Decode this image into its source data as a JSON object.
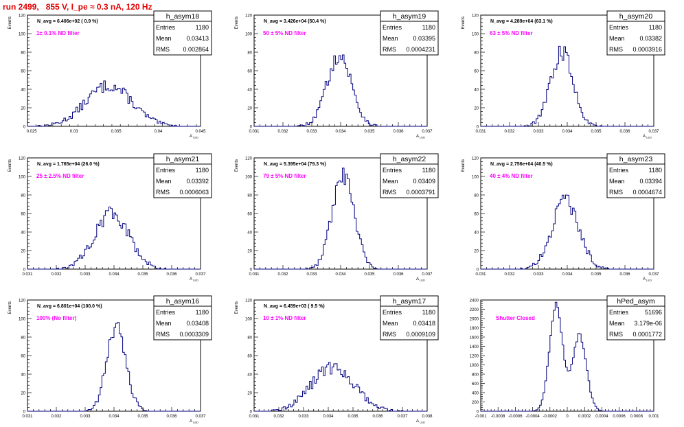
{
  "header": {
    "run_title": "run 2499,   855 V, I_pe ≈ 0.3 nA, 120 Hz"
  },
  "colors": {
    "histogram_line": "#00007f",
    "filter_label": "#ff00ff",
    "title": "#e00000"
  },
  "stat_labels": {
    "entries": "Entries",
    "mean": "Mean",
    "rms": "RMS"
  },
  "chart_data": [
    {
      "type": "histogram",
      "name": "h_asym18",
      "xlim": [
        0.0245,
        0.045
      ],
      "ylim": [
        0,
        120
      ],
      "xticks": [
        0.025,
        0.03,
        0.035,
        0.04,
        0.045
      ],
      "xtick_labels": [
        "0.025",
        "0.03",
        "0.035",
        "0.04",
        "0.045"
      ],
      "yticks": [
        0,
        20,
        40,
        60,
        80,
        100,
        120
      ],
      "ytick_labels": [
        "0",
        "20",
        "40",
        "60",
        "80",
        "100",
        "120"
      ],
      "ylabel": "Events",
      "xlabel": "A",
      "xlabel_sub": "LED",
      "stats": {
        "entries": "1180",
        "mean": "0.03413",
        "rms": "0.002864"
      },
      "n_avg": "N_avg = 6.406e+02 ( 0.9 %)",
      "filter_label": "1± 0.1% ND filter",
      "mode": "wide",
      "center": 0.03413,
      "sigma": 0.002864,
      "peak": 44
    },
    {
      "type": "histogram",
      "name": "h_asym19",
      "xlim": [
        0.031,
        0.037
      ],
      "ylim": [
        0,
        120
      ],
      "xticks": [
        0.031,
        0.032,
        0.033,
        0.034,
        0.035,
        0.036,
        0.037
      ],
      "xtick_labels": [
        "0.031",
        "0.032",
        "0.033",
        "0.034",
        "0.035",
        "0.036",
        "0.037"
      ],
      "yticks": [
        0,
        20,
        40,
        60,
        80,
        100,
        120
      ],
      "ytick_labels": [
        "0",
        "20",
        "40",
        "60",
        "80",
        "100",
        "120"
      ],
      "ylabel": "Events",
      "xlabel": "A",
      "xlabel_sub": "LED",
      "stats": {
        "entries": "1180",
        "mean": "0.03395",
        "rms": "0.0004231"
      },
      "n_avg": "N_avg = 3.426e+04 (50.4 %)",
      "filter_label": "50 ± 5% ND filter",
      "mode": "gauss",
      "center": 0.03395,
      "sigma": 0.0004231,
      "peak": 77
    },
    {
      "type": "histogram",
      "name": "h_asym20",
      "xlim": [
        0.031,
        0.037
      ],
      "ylim": [
        0,
        120
      ],
      "xticks": [
        0.031,
        0.032,
        0.033,
        0.034,
        0.035,
        0.036,
        0.037
      ],
      "xtick_labels": [
        "0.031",
        "0.032",
        "0.033",
        "0.034",
        "0.035",
        "0.036",
        "0.037"
      ],
      "yticks": [
        0,
        20,
        40,
        60,
        80,
        100,
        120
      ],
      "ytick_labels": [
        "0",
        "20",
        "40",
        "60",
        "80",
        "100",
        "120"
      ],
      "ylabel": "Events",
      "xlabel": "A",
      "xlabel_sub": "LED",
      "stats": {
        "entries": "1180",
        "mean": "0.03382",
        "rms": "0.0003916"
      },
      "n_avg": "N_avg = 4.289e+04 (63.1 %)",
      "filter_label": "63 ± 5% ND filter",
      "mode": "gauss",
      "center": 0.03382,
      "sigma": 0.0003916,
      "peak": 80
    },
    {
      "type": "histogram",
      "name": "h_asym21",
      "xlim": [
        0.031,
        0.037
      ],
      "ylim": [
        0,
        120
      ],
      "xticks": [
        0.031,
        0.032,
        0.033,
        0.034,
        0.035,
        0.036,
        0.037
      ],
      "xtick_labels": [
        "0.031",
        "0.032",
        "0.033",
        "0.034",
        "0.035",
        "0.036",
        "0.037"
      ],
      "yticks": [
        0,
        20,
        40,
        60,
        80,
        100,
        120
      ],
      "ytick_labels": [
        "0",
        "20",
        "40",
        "60",
        "80",
        "100",
        "120"
      ],
      "ylabel": "Events",
      "xlabel": "A",
      "xlabel_sub": "LED",
      "stats": {
        "entries": "1180",
        "mean": "0.03392",
        "rms": "0.0006063"
      },
      "n_avg": "N_avg = 1.765e+04 (26.0 %)",
      "filter_label": "25 ± 2.5% ND filter",
      "mode": "gauss",
      "center": 0.03392,
      "sigma": 0.0006063,
      "peak": 60
    },
    {
      "type": "histogram",
      "name": "h_asym22",
      "xlim": [
        0.031,
        0.037
      ],
      "ylim": [
        0,
        120
      ],
      "xticks": [
        0.031,
        0.032,
        0.033,
        0.034,
        0.035,
        0.036,
        0.037
      ],
      "xtick_labels": [
        "0.031",
        "0.032",
        "0.033",
        "0.034",
        "0.035",
        "0.036",
        "0.037"
      ],
      "yticks": [
        0,
        20,
        40,
        60,
        80,
        100,
        120
      ],
      "ytick_labels": [
        "0",
        "20",
        "40",
        "60",
        "80",
        "100",
        "120"
      ],
      "ylabel": "Events",
      "xlabel": "A",
      "xlabel_sub": "LED",
      "stats": {
        "entries": "1180",
        "mean": "0.03409",
        "rms": "0.0003791"
      },
      "n_avg": "N_avg = 5.395e+04 (79.3 %)",
      "filter_label": "79 ± 5% ND filter",
      "mode": "gauss",
      "center": 0.03409,
      "sigma": 0.0003791,
      "peak": 100
    },
    {
      "type": "histogram",
      "name": "h_asym23",
      "xlim": [
        0.031,
        0.037
      ],
      "ylim": [
        0,
        120
      ],
      "xticks": [
        0.031,
        0.032,
        0.033,
        0.034,
        0.035,
        0.036,
        0.037
      ],
      "xtick_labels": [
        "0.031",
        "0.032",
        "0.033",
        "0.034",
        "0.035",
        "0.036",
        "0.037"
      ],
      "yticks": [
        0,
        20,
        40,
        60,
        80,
        100,
        120
      ],
      "ytick_labels": [
        "0",
        "20",
        "40",
        "60",
        "80",
        "100",
        "120"
      ],
      "ylabel": "Events",
      "xlabel": "A",
      "xlabel_sub": "LED",
      "stats": {
        "entries": "1180",
        "mean": "0.03394",
        "rms": "0.0004674"
      },
      "n_avg": "N_avg = 2.756e+04 (40.5 %)",
      "filter_label": "40 ± 4% ND filter",
      "mode": "gauss",
      "center": 0.03394,
      "sigma": 0.0004674,
      "peak": 74
    },
    {
      "type": "histogram",
      "name": "h_asym16",
      "xlim": [
        0.031,
        0.037
      ],
      "ylim": [
        0,
        120
      ],
      "xticks": [
        0.031,
        0.032,
        0.033,
        0.034,
        0.035,
        0.036,
        0.037
      ],
      "xtick_labels": [
        "0.031",
        "0.032",
        "0.033",
        "0.034",
        "0.035",
        "0.036",
        "0.037"
      ],
      "yticks": [
        0,
        20,
        40,
        60,
        80,
        100,
        120
      ],
      "ytick_labels": [
        "0",
        "20",
        "40",
        "60",
        "80",
        "100",
        "120"
      ],
      "ylabel": "Events",
      "xlabel": "A",
      "xlabel_sub": "LED",
      "stats": {
        "entries": "1180",
        "mean": "0.03408",
        "rms": "0.0003309"
      },
      "n_avg": "N_avg = 6.801e+04 (100.0 %)",
      "filter_label": "100% (No filter)",
      "mode": "gauss",
      "center": 0.03408,
      "sigma": 0.0003309,
      "peak": 90
    },
    {
      "type": "histogram",
      "name": "h_asym17",
      "xlim": [
        0.031,
        0.038
      ],
      "ylim": [
        0,
        120
      ],
      "xticks": [
        0.031,
        0.032,
        0.033,
        0.034,
        0.035,
        0.036,
        0.037,
        0.038
      ],
      "xtick_labels": [
        "0.031",
        "0.032",
        "0.033",
        "0.034",
        "0.035",
        "0.036",
        "0.037",
        "0.038"
      ],
      "yticks": [
        0,
        20,
        40,
        60,
        80,
        100,
        120
      ],
      "ytick_labels": [
        "0",
        "20",
        "40",
        "60",
        "80",
        "100",
        "120"
      ],
      "ylabel": "Events",
      "xlabel": "A",
      "xlabel_sub": "LED",
      "stats": {
        "entries": "1180",
        "mean": "0.03418",
        "rms": "0.0009109"
      },
      "n_avg": "N_avg = 6.459e+03 ( 9.5 %)",
      "filter_label": "10 ± 1% ND filter",
      "mode": "wide",
      "center": 0.03418,
      "sigma": 0.0009109,
      "peak": 47
    },
    {
      "type": "histogram",
      "name": "hPed_asym",
      "xlim": [
        -0.001,
        0.001
      ],
      "ylim": [
        0,
        2400
      ],
      "xticks": [
        -0.001,
        -0.0008,
        -0.0006,
        -0.0004,
        -0.0002,
        0,
        0.0002,
        0.0004,
        0.0006,
        0.0008,
        0.001
      ],
      "xtick_labels": [
        "-0.001",
        "-0.0008",
        "-0.0006",
        "-0.0004",
        "-0.0002",
        "0",
        "0.0002",
        "0.0004",
        "0.0006",
        "0.0008",
        "0.001"
      ],
      "yticks": [
        0,
        200,
        400,
        600,
        800,
        1000,
        1200,
        1400,
        1600,
        1800,
        2000,
        2200,
        2400
      ],
      "ytick_labels": [
        "0",
        "200",
        "400",
        "600",
        "800",
        "1000",
        "1200",
        "1400",
        "1600",
        "1800",
        "2000",
        "2200",
        "2400"
      ],
      "ylabel": "",
      "xlabel": "",
      "xlabel_sub": "",
      "stats": {
        "entries": "51696",
        "mean": "3.179e-06",
        "rms": "0.0001772"
      },
      "n_avg": "",
      "filter_label": "Shutter Closed",
      "mode": "double",
      "center": 3.2e-06,
      "sigma": 0.0001772,
      "peak": 2320,
      "peaks": [
        {
          "center": -0.00013,
          "height": 2300,
          "sigma": 7.5e-05
        },
        {
          "center": 0.00014,
          "height": 1640,
          "sigma": 8e-05
        }
      ]
    }
  ]
}
